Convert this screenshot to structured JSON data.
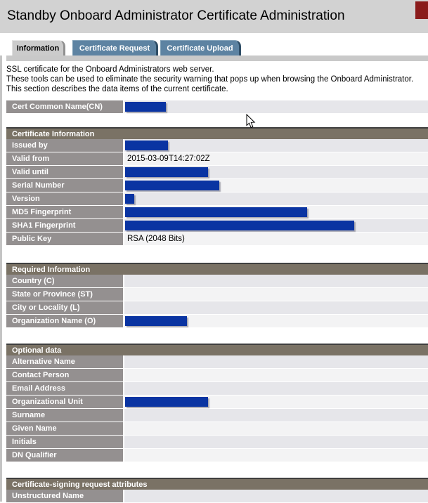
{
  "page": {
    "title": "Standby Onboard Administrator Certificate Administration"
  },
  "header": {
    "red_marker_color": "#8a1b1b"
  },
  "tabs": [
    {
      "label": "Information",
      "active": true
    },
    {
      "label": "Certificate Request",
      "active": false
    },
    {
      "label": "Certificate Upload",
      "active": false
    }
  ],
  "description": {
    "line1": "SSL certificate for the Onboard Administrators web server.",
    "line2": "These tools can be used to eliminate the security warning that pops up when browsing the Onboard Administrator.",
    "line3": "This section describes the data items of the current certificate."
  },
  "colors": {
    "title_band": "#d2d2d2",
    "section_header": "#7a7265",
    "row_label": "#949090",
    "tab_blue": "#5d83a2",
    "tab_active": "#cbcbcb",
    "redaction_blue": "#0a34a2"
  },
  "tables": [
    {
      "id": "t-common",
      "header": null,
      "rows": [
        {
          "label": "Cert Common Name(CN)",
          "value": "",
          "redacted": true,
          "redact_width": 58
        }
      ]
    },
    {
      "id": "t-certinfo",
      "header": "Certificate Information",
      "rows": [
        {
          "label": "Issued by",
          "value": "",
          "redacted": true,
          "redact_width": 61
        },
        {
          "label": "Valid from",
          "value": "2015-03-09T14:27:02Z",
          "redacted": false
        },
        {
          "label": "Valid until",
          "value": "",
          "redacted": true,
          "redact_width": 118
        },
        {
          "label": "Serial Number",
          "value": "",
          "redacted": true,
          "redact_width": 134
        },
        {
          "label": "Version",
          "value": "",
          "redacted": true,
          "redact_width": 13
        },
        {
          "label": "MD5 Fingerprint",
          "value": "",
          "redacted": true,
          "redact_width": 259
        },
        {
          "label": "SHA1 Fingerprint",
          "value": "",
          "redacted": true,
          "redact_width": 326
        },
        {
          "label": "Public Key",
          "value": "RSA (2048 Bits)",
          "redacted": false
        }
      ]
    },
    {
      "id": "t-required",
      "header": "Required Information",
      "rows": [
        {
          "label": "Country (C)",
          "value": "",
          "redacted": false
        },
        {
          "label": "State or Province (ST)",
          "value": "",
          "redacted": false
        },
        {
          "label": "City or Locality (L)",
          "value": "",
          "redacted": false
        },
        {
          "label": "Organization Name (O)",
          "value": "",
          "redacted": true,
          "redact_width": 88
        }
      ]
    },
    {
      "id": "t-optional",
      "header": "Optional data",
      "rows": [
        {
          "label": "Alternative Name",
          "value": "",
          "redacted": false
        },
        {
          "label": "Contact Person",
          "value": "",
          "redacted": false
        },
        {
          "label": "Email Address",
          "value": "",
          "redacted": false
        },
        {
          "label": "Organizational Unit",
          "value": "",
          "redacted": true,
          "redact_width": 118
        },
        {
          "label": "Surname",
          "value": "",
          "redacted": false
        },
        {
          "label": "Given Name",
          "value": "",
          "redacted": false
        },
        {
          "label": "Initials",
          "value": "",
          "redacted": false
        },
        {
          "label": "DN Qualifier",
          "value": "",
          "redacted": false
        }
      ]
    },
    {
      "id": "t-csr",
      "header": "Certificate-signing request attributes",
      "rows": [
        {
          "label": "Unstructured Name",
          "value": "",
          "redacted": false
        }
      ]
    }
  ]
}
